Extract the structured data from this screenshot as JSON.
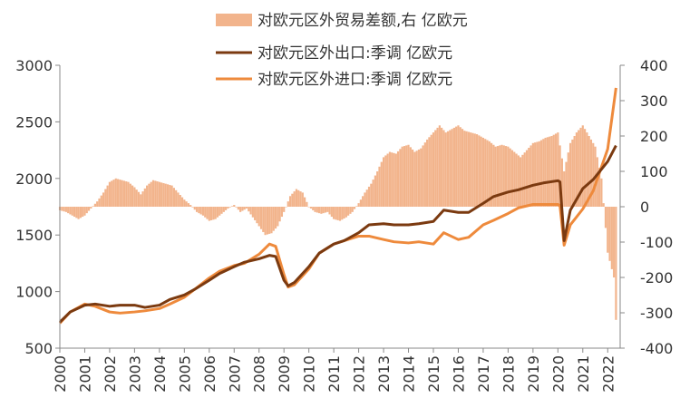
{
  "colors": {
    "trade_balance": "#F2B48C",
    "exports": "#7B3A10",
    "imports": "#EE8A3C",
    "axis": "#888888"
  },
  "chart_data": {
    "type": "line",
    "legend_position": "top-center",
    "grid": false,
    "x_ticks": [
      "2000",
      "2001",
      "2002",
      "2003",
      "2004",
      "2005",
      "2006",
      "2007",
      "2008",
      "2009",
      "2010",
      "2011",
      "2012",
      "2013",
      "2014",
      "2015",
      "2016",
      "2017",
      "2018",
      "2019",
      "2020",
      "2021",
      "2022"
    ],
    "y_left": {
      "min": 500,
      "max": 3000,
      "ticks": [
        "500",
        "1000",
        "1500",
        "2000",
        "2500",
        "3000"
      ]
    },
    "y_right": {
      "min": -400,
      "max": 400,
      "ticks": [
        "-400",
        "-300",
        "-200",
        "-100",
        "0",
        "100",
        "200",
        "300",
        "400"
      ]
    },
    "series": [
      {
        "name": "对欧元区外贸易差额,右 亿欧元",
        "kind": "bar",
        "axis": "right",
        "points": [
          [
            "2000-01",
            -10
          ],
          [
            "2000-04",
            -15
          ],
          [
            "2000-07",
            -25
          ],
          [
            "2000-10",
            -35
          ],
          [
            "2001-01",
            -25
          ],
          [
            "2001-04",
            -5
          ],
          [
            "2001-07",
            15
          ],
          [
            "2001-10",
            40
          ],
          [
            "2002-01",
            70
          ],
          [
            "2002-04",
            80
          ],
          [
            "2002-07",
            75
          ],
          [
            "2002-10",
            70
          ],
          [
            "2003-01",
            55
          ],
          [
            "2003-04",
            35
          ],
          [
            "2003-07",
            60
          ],
          [
            "2003-10",
            75
          ],
          [
            "2004-01",
            70
          ],
          [
            "2004-04",
            65
          ],
          [
            "2004-07",
            60
          ],
          [
            "2004-10",
            40
          ],
          [
            "2005-01",
            20
          ],
          [
            "2005-04",
            5
          ],
          [
            "2005-07",
            -15
          ],
          [
            "2005-10",
            -25
          ],
          [
            "2006-01",
            -40
          ],
          [
            "2006-04",
            -35
          ],
          [
            "2006-07",
            -20
          ],
          [
            "2006-10",
            -5
          ],
          [
            "2007-01",
            5
          ],
          [
            "2007-04",
            -15
          ],
          [
            "2007-07",
            -5
          ],
          [
            "2007-10",
            -30
          ],
          [
            "2008-01",
            -55
          ],
          [
            "2008-04",
            -80
          ],
          [
            "2008-07",
            -75
          ],
          [
            "2008-10",
            -55
          ],
          [
            "2009-01",
            -15
          ],
          [
            "2009-04",
            30
          ],
          [
            "2009-07",
            50
          ],
          [
            "2009-10",
            40
          ],
          [
            "2010-01",
            0
          ],
          [
            "2010-04",
            -15
          ],
          [
            "2010-07",
            -20
          ],
          [
            "2010-10",
            -15
          ],
          [
            "2011-01",
            -35
          ],
          [
            "2011-04",
            -40
          ],
          [
            "2011-07",
            -30
          ],
          [
            "2011-10",
            -15
          ],
          [
            "2012-01",
            10
          ],
          [
            "2012-04",
            40
          ],
          [
            "2012-07",
            65
          ],
          [
            "2012-10",
            100
          ],
          [
            "2013-01",
            140
          ],
          [
            "2013-04",
            155
          ],
          [
            "2013-07",
            150
          ],
          [
            "2013-10",
            170
          ],
          [
            "2014-01",
            175
          ],
          [
            "2014-04",
            155
          ],
          [
            "2014-07",
            165
          ],
          [
            "2014-10",
            190
          ],
          [
            "2015-01",
            210
          ],
          [
            "2015-04",
            230
          ],
          [
            "2015-07",
            210
          ],
          [
            "2015-10",
            220
          ],
          [
            "2016-01",
            230
          ],
          [
            "2016-04",
            215
          ],
          [
            "2016-07",
            210
          ],
          [
            "2016-10",
            205
          ],
          [
            "2017-01",
            195
          ],
          [
            "2017-04",
            185
          ],
          [
            "2017-07",
            170
          ],
          [
            "2017-10",
            175
          ],
          [
            "2018-01",
            170
          ],
          [
            "2018-04",
            155
          ],
          [
            "2018-07",
            140
          ],
          [
            "2018-10",
            160
          ],
          [
            "2019-01",
            180
          ],
          [
            "2019-04",
            185
          ],
          [
            "2019-07",
            195
          ],
          [
            "2019-10",
            200
          ],
          [
            "2020-01",
            210
          ],
          [
            "2020-04",
            100
          ],
          [
            "2020-07",
            180
          ],
          [
            "2020-10",
            210
          ],
          [
            "2021-01",
            230
          ],
          [
            "2021-04",
            200
          ],
          [
            "2021-07",
            170
          ],
          [
            "2021-10",
            80
          ],
          [
            "2022-01",
            -130
          ],
          [
            "2022-04",
            -200
          ],
          [
            "2022-05",
            -320
          ]
        ]
      },
      {
        "name": "对欧元区外出口:季调 亿欧元",
        "kind": "line",
        "axis": "left",
        "points": [
          [
            "2000-01",
            730
          ],
          [
            "2000-06",
            820
          ],
          [
            "2001-01",
            880
          ],
          [
            "2001-06",
            890
          ],
          [
            "2002-01",
            870
          ],
          [
            "2002-06",
            880
          ],
          [
            "2003-01",
            880
          ],
          [
            "2003-06",
            860
          ],
          [
            "2004-01",
            880
          ],
          [
            "2004-06",
            930
          ],
          [
            "2005-01",
            970
          ],
          [
            "2005-06",
            1020
          ],
          [
            "2006-01",
            1100
          ],
          [
            "2006-06",
            1160
          ],
          [
            "2007-01",
            1220
          ],
          [
            "2007-06",
            1260
          ],
          [
            "2008-01",
            1290
          ],
          [
            "2008-06",
            1320
          ],
          [
            "2008-09",
            1310
          ],
          [
            "2009-01",
            1100
          ],
          [
            "2009-03",
            1050
          ],
          [
            "2009-06",
            1080
          ],
          [
            "2010-01",
            1220
          ],
          [
            "2010-06",
            1340
          ],
          [
            "2011-01",
            1420
          ],
          [
            "2011-06",
            1450
          ],
          [
            "2012-01",
            1520
          ],
          [
            "2012-06",
            1590
          ],
          [
            "2013-01",
            1600
          ],
          [
            "2013-06",
            1590
          ],
          [
            "2014-01",
            1590
          ],
          [
            "2014-06",
            1600
          ],
          [
            "2015-01",
            1620
          ],
          [
            "2015-06",
            1720
          ],
          [
            "2016-01",
            1700
          ],
          [
            "2016-06",
            1700
          ],
          [
            "2017-01",
            1780
          ],
          [
            "2017-06",
            1840
          ],
          [
            "2018-01",
            1880
          ],
          [
            "2018-06",
            1900
          ],
          [
            "2019-01",
            1940
          ],
          [
            "2019-06",
            1960
          ],
          [
            "2020-01",
            1980
          ],
          [
            "2020-02",
            1970
          ],
          [
            "2020-04",
            1450
          ],
          [
            "2020-07",
            1720
          ],
          [
            "2021-01",
            1910
          ],
          [
            "2021-06",
            1990
          ],
          [
            "2022-01",
            2150
          ],
          [
            "2022-05",
            2290
          ]
        ]
      },
      {
        "name": "对欧元区外进口:季调 亿欧元",
        "kind": "line",
        "axis": "left",
        "points": [
          [
            "2000-01",
            720
          ],
          [
            "2000-06",
            820
          ],
          [
            "2001-01",
            890
          ],
          [
            "2001-06",
            870
          ],
          [
            "2002-01",
            820
          ],
          [
            "2002-06",
            810
          ],
          [
            "2003-01",
            820
          ],
          [
            "2003-06",
            830
          ],
          [
            "2004-01",
            850
          ],
          [
            "2004-06",
            890
          ],
          [
            "2005-01",
            950
          ],
          [
            "2005-06",
            1020
          ],
          [
            "2006-01",
            1120
          ],
          [
            "2006-06",
            1180
          ],
          [
            "2007-01",
            1230
          ],
          [
            "2007-06",
            1250
          ],
          [
            "2008-01",
            1330
          ],
          [
            "2008-06",
            1420
          ],
          [
            "2008-09",
            1400
          ],
          [
            "2009-01",
            1150
          ],
          [
            "2009-03",
            1040
          ],
          [
            "2009-06",
            1060
          ],
          [
            "2010-01",
            1200
          ],
          [
            "2010-06",
            1340
          ],
          [
            "2011-01",
            1420
          ],
          [
            "2011-06",
            1450
          ],
          [
            "2012-01",
            1490
          ],
          [
            "2012-06",
            1490
          ],
          [
            "2013-01",
            1460
          ],
          [
            "2013-06",
            1440
          ],
          [
            "2014-01",
            1430
          ],
          [
            "2014-06",
            1440
          ],
          [
            "2015-01",
            1420
          ],
          [
            "2015-06",
            1520
          ],
          [
            "2016-01",
            1460
          ],
          [
            "2016-06",
            1480
          ],
          [
            "2017-01",
            1590
          ],
          [
            "2017-06",
            1630
          ],
          [
            "2018-01",
            1690
          ],
          [
            "2018-06",
            1740
          ],
          [
            "2019-01",
            1770
          ],
          [
            "2019-06",
            1770
          ],
          [
            "2020-01",
            1770
          ],
          [
            "2020-02",
            1760
          ],
          [
            "2020-04",
            1410
          ],
          [
            "2020-07",
            1590
          ],
          [
            "2021-01",
            1730
          ],
          [
            "2021-06",
            1890
          ],
          [
            "2022-01",
            2260
          ],
          [
            "2022-05",
            2800
          ]
        ]
      }
    ]
  }
}
